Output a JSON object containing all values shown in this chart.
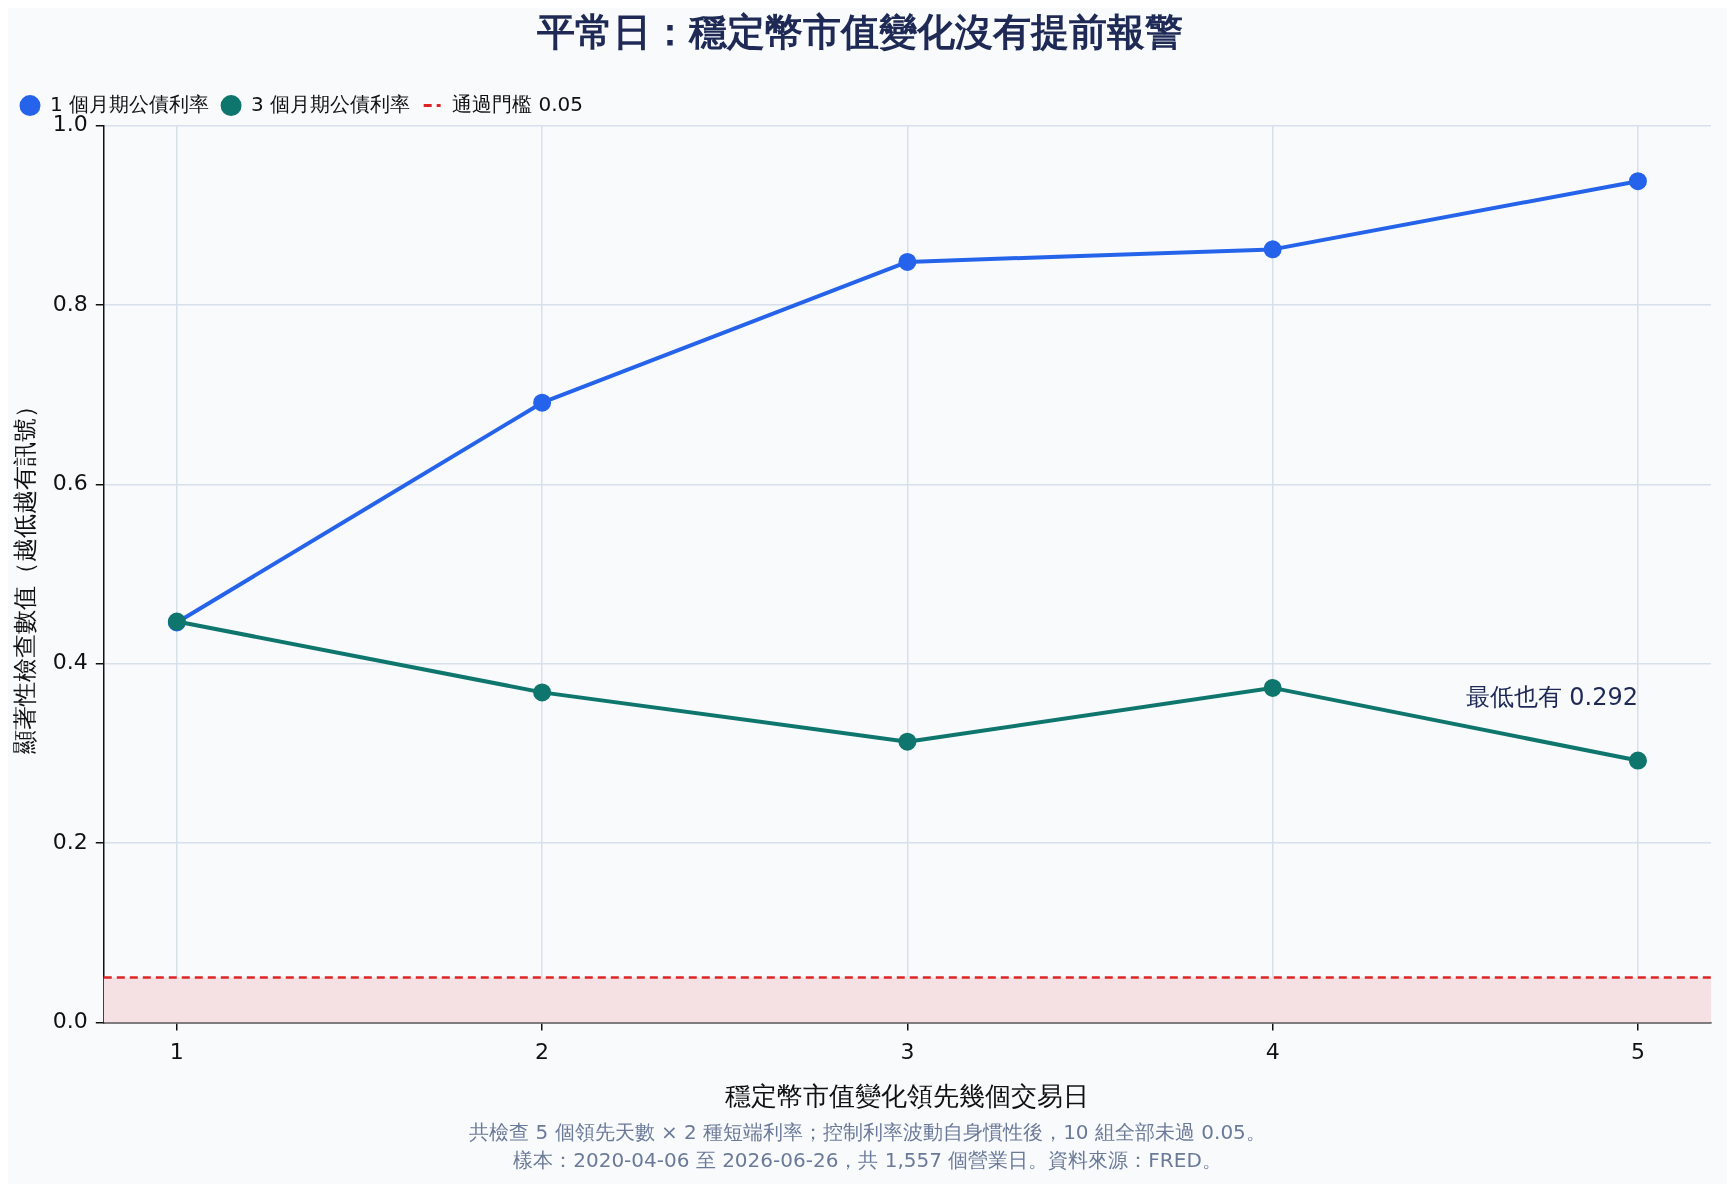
{
  "chart_data": {
    "type": "line",
    "title": "平常日：穩定幣市值變化沒有提前報警",
    "xlabel": "穩定幣市值變化領先幾個交易日",
    "ylabel": "顯著性檢查數值（越低越有訊號）",
    "x": [
      1,
      2,
      3,
      4,
      5
    ],
    "series": [
      {
        "name": "1 個月期公債利率",
        "color": "#2563eb",
        "values": [
          0.446,
          0.691,
          0.848,
          0.862,
          0.938
        ]
      },
      {
        "name": "3 個月期公債利率",
        "color": "#0f766e",
        "values": [
          0.447,
          0.368,
          0.313,
          0.373,
          0.292
        ]
      }
    ],
    "xlim": [
      0.8,
      5.2
    ],
    "xticks": [
      1,
      2,
      3,
      4,
      5
    ],
    "ylim": [
      0,
      1
    ],
    "yticks": [
      {
        "value": 0,
        "label": "0.0"
      },
      0.2,
      0.4,
      0.6,
      0.8,
      {
        "value": 1,
        "label": "1.0"
      }
    ],
    "ref_lines": [
      {
        "axis": "y",
        "value": 0.05,
        "label": "通過門檻 0.05",
        "color": "#dc2626",
        "line_style": "dashed"
      }
    ],
    "bands": [
      {
        "axis": "y",
        "from": 0,
        "to": 0.05,
        "color": "#f5e1e4"
      }
    ],
    "annotations": [
      {
        "text": "最低也有 0.292",
        "x": 5,
        "y": 0.292
      },
      "共檢查 5 個領先天數 × 2 種短端利率；控制利率波動自身慣性後，10 組全部未過 0.05。",
      "樣本：2020-04-06 至 2026-06-26，共 1,557 個營業日。資料來源：FRED。"
    ],
    "grid": true,
    "legend": "top left",
    "marker": "circle",
    "line_style": "solid"
  }
}
